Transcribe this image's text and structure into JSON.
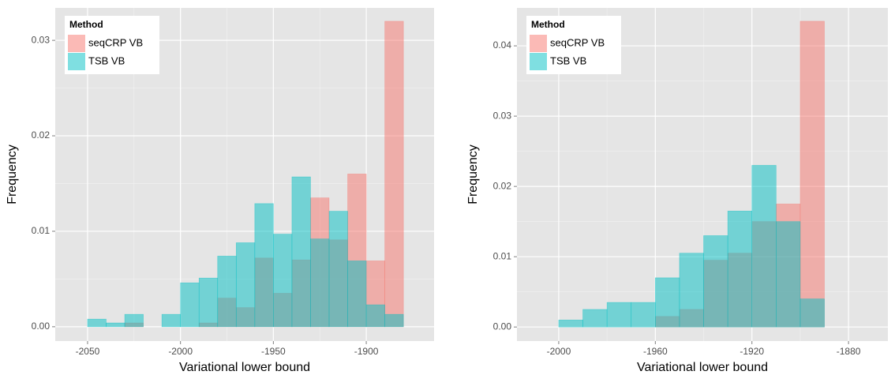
{
  "chart_data": [
    {
      "type": "histogram",
      "xlabel": "Variational lower bound",
      "ylabel": "Frequency",
      "legend_title": "Method",
      "bins": [
        -2060,
        -2050,
        -2040,
        -2030,
        -2020,
        -2010,
        -2000,
        -1990,
        -1980,
        -1970,
        -1960,
        -1950,
        -1940,
        -1930,
        -1920,
        -1910,
        -1900,
        -1890,
        -1880,
        -1870
      ],
      "series": [
        {
          "name": "seqCRP VB",
          "color": "#F8766D",
          "values": [
            0,
            0,
            0,
            0.0004,
            0,
            0,
            0,
            0.0004,
            0.003,
            0.002,
            0.0072,
            0.0035,
            0.007,
            0.0135,
            0.0091,
            0.016,
            0.0069,
            0.032,
            0
          ]
        },
        {
          "name": "TSB VB",
          "color": "#00BFC4",
          "values": [
            0,
            0.0008,
            0.0004,
            0.0013,
            0,
            0.0013,
            0.0046,
            0.0051,
            0.0074,
            0.0088,
            0.0129,
            0.0097,
            0.0157,
            0.0092,
            0.0121,
            0.0069,
            0.0023,
            0.0013,
            0
          ]
        }
      ],
      "xlim": [
        -2067.4,
        -1863.5
      ],
      "xticks": [
        -2050,
        -2000,
        -1950,
        -1900
      ],
      "ylim": [
        -0.0015,
        0.0334
      ],
      "yticks": [
        {
          "value": 0,
          "label": "0.00"
        },
        {
          "value": 0.01,
          "label": "0.01"
        },
        {
          "value": 0.02,
          "label": "0.02"
        },
        {
          "value": 0.03,
          "label": "0.03"
        }
      ],
      "grid": true,
      "legend": "top-left"
    },
    {
      "type": "histogram",
      "xlabel": "Variational lower bound",
      "ylabel": "Frequency",
      "legend_title": "Method",
      "bins": [
        -2010,
        -2000,
        -1990,
        -1980,
        -1970,
        -1960,
        -1950,
        -1940,
        -1930,
        -1920,
        -1910,
        -1900,
        -1890,
        -1880,
        -1870
      ],
      "series": [
        {
          "name": "seqCRP VB",
          "color": "#F8766D",
          "values": [
            0,
            0,
            0,
            0,
            0,
            0.0015,
            0.0025,
            0.0095,
            0.0105,
            0.015,
            0.0175,
            0.0435,
            0,
            0
          ]
        },
        {
          "name": "TSB VB",
          "color": "#00BFC4",
          "values": [
            0,
            0.001,
            0.0025,
            0.0035,
            0.0035,
            0.007,
            0.0105,
            0.013,
            0.0165,
            0.023,
            0.015,
            0.004,
            0,
            0
          ]
        }
      ],
      "xlim": [
        -2017.3,
        -1863.7
      ],
      "xticks": [
        -2000,
        -1960,
        -1920,
        -1880
      ],
      "ylim": [
        -0.002,
        0.0454
      ],
      "yticks": [
        {
          "value": 0,
          "label": "0.00"
        },
        {
          "value": 0.01,
          "label": "0.01"
        },
        {
          "value": 0.02,
          "label": "0.02"
        },
        {
          "value": 0.03,
          "label": "0.03"
        },
        {
          "value": 0.04,
          "label": "0.04"
        }
      ],
      "grid": true,
      "legend": "top-left"
    }
  ]
}
